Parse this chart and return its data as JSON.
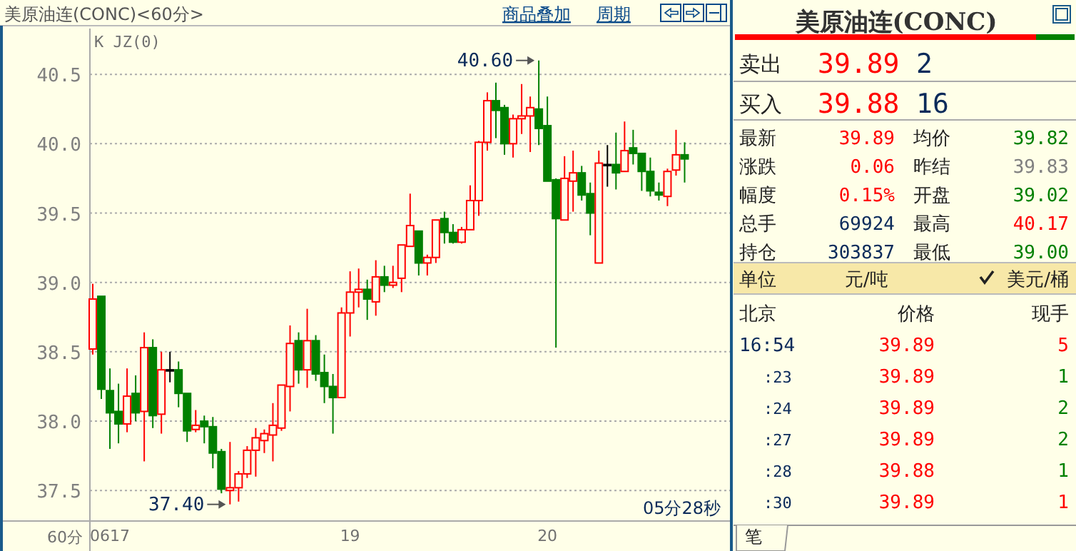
{
  "chart_data": [
    {
      "type": "candlestick",
      "title": "美原油连(CONC)<60分>",
      "categories": [
        null,
        null,
        "0617",
        null,
        null,
        null,
        null,
        null,
        null,
        null,
        null,
        null,
        null,
        null,
        null,
        null,
        null,
        null,
        null,
        null,
        null,
        null,
        null,
        null,
        null,
        null,
        null,
        null,
        null,
        null,
        "19",
        null,
        null,
        null,
        null,
        null,
        null,
        null,
        null,
        null,
        null,
        null,
        null,
        null,
        null,
        null,
        null,
        null,
        null,
        null,
        null,
        null,
        null,
        "20",
        null,
        null,
        null,
        null,
        null,
        null,
        null,
        null,
        null,
        null,
        null,
        null,
        null,
        null,
        null,
        null
      ],
      "ohlc": [
        [
          38.52,
          38.99,
          38.48,
          38.88
        ],
        [
          38.9,
          38.9,
          38.16,
          38.23
        ],
        [
          38.22,
          38.38,
          37.8,
          38.06
        ],
        [
          38.07,
          38.27,
          37.84,
          37.98
        ],
        [
          37.98,
          38.38,
          37.92,
          38.18
        ],
        [
          38.2,
          38.33,
          38.0,
          38.06
        ],
        [
          38.07,
          38.64,
          37.71,
          38.53
        ],
        [
          38.53,
          38.59,
          37.95,
          38.04
        ],
        [
          38.05,
          38.5,
          37.91,
          38.37
        ],
        [
          38.37,
          38.5,
          38.28,
          38.37
        ],
        [
          38.37,
          38.43,
          38.1,
          38.2
        ],
        [
          38.2,
          38.2,
          37.85,
          37.93
        ],
        [
          37.94,
          38.08,
          37.92,
          37.97
        ],
        [
          38.0,
          38.04,
          37.84,
          37.96
        ],
        [
          37.96,
          38.03,
          37.66,
          37.77
        ],
        [
          37.78,
          37.8,
          37.48,
          37.51
        ],
        [
          37.5,
          37.85,
          37.4,
          37.52
        ],
        [
          37.52,
          37.64,
          37.42,
          37.62
        ],
        [
          37.62,
          37.82,
          37.59,
          37.79
        ],
        [
          37.79,
          37.95,
          37.6,
          37.88
        ],
        [
          37.86,
          37.94,
          37.77,
          37.91
        ],
        [
          37.9,
          38.13,
          37.71,
          37.97
        ],
        [
          37.95,
          38.26,
          37.93,
          38.26
        ],
        [
          38.25,
          38.69,
          38.07,
          38.56
        ],
        [
          38.58,
          38.64,
          38.27,
          38.37
        ],
        [
          38.37,
          38.81,
          38.24,
          38.58
        ],
        [
          38.58,
          38.62,
          38.29,
          38.34
        ],
        [
          38.35,
          38.48,
          38.13,
          38.25
        ],
        [
          38.25,
          38.34,
          37.91,
          38.17
        ],
        [
          38.17,
          38.82,
          38.17,
          38.78
        ],
        [
          38.78,
          39.08,
          38.61,
          38.93
        ],
        [
          38.93,
          39.1,
          38.82,
          38.95
        ],
        [
          38.95,
          39.02,
          38.73,
          38.88
        ],
        [
          38.86,
          39.16,
          38.76,
          39.04
        ],
        [
          39.04,
          39.12,
          38.93,
          38.98
        ],
        [
          38.98,
          39.12,
          38.96,
          39.0
        ],
        [
          39.03,
          39.27,
          38.93,
          39.27
        ],
        [
          39.26,
          39.64,
          39.26,
          39.41
        ],
        [
          39.37,
          39.37,
          39.05,
          39.14
        ],
        [
          39.14,
          39.2,
          39.05,
          39.18
        ],
        [
          39.18,
          39.45,
          39.14,
          39.45
        ],
        [
          39.46,
          39.51,
          39.28,
          39.36
        ],
        [
          39.36,
          39.42,
          39.28,
          39.29
        ],
        [
          39.29,
          39.4,
          39.28,
          39.38
        ],
        [
          39.38,
          39.7,
          39.38,
          39.59
        ],
        [
          39.59,
          40.02,
          39.48,
          40.01
        ],
        [
          40.01,
          40.37,
          39.95,
          40.31
        ],
        [
          40.31,
          40.44,
          40.04,
          40.24
        ],
        [
          40.26,
          40.28,
          39.92,
          40.0
        ],
        [
          40.0,
          40.21,
          39.9,
          40.18
        ],
        [
          40.18,
          40.43,
          40.07,
          40.2
        ],
        [
          40.2,
          40.34,
          39.94,
          40.26
        ],
        [
          40.25,
          40.6,
          39.99,
          40.11
        ],
        [
          40.13,
          40.34,
          39.73,
          39.73
        ],
        [
          39.74,
          39.75,
          38.53,
          39.46
        ],
        [
          39.45,
          39.91,
          39.45,
          39.75
        ],
        [
          39.73,
          39.95,
          39.51,
          39.79
        ],
        [
          39.79,
          39.84,
          39.59,
          39.63
        ],
        [
          39.64,
          39.72,
          39.34,
          39.5
        ],
        [
          39.14,
          39.95,
          39.14,
          39.86
        ],
        [
          39.85,
          39.99,
          39.69,
          39.85
        ],
        [
          39.85,
          40.08,
          39.67,
          39.79
        ],
        [
          39.8,
          40.16,
          39.8,
          39.95
        ],
        [
          39.97,
          40.1,
          39.85,
          39.93
        ],
        [
          39.93,
          39.93,
          39.66,
          39.8
        ],
        [
          39.8,
          39.9,
          39.62,
          39.66
        ],
        [
          39.65,
          39.72,
          39.59,
          39.63
        ],
        [
          39.62,
          39.82,
          39.55,
          39.8
        ],
        [
          39.81,
          40.1,
          39.77,
          39.92
        ],
        [
          39.92,
          40.01,
          39.72,
          39.89
        ]
      ],
      "colors": [
        "#ff0000",
        "#008000",
        "#008000",
        "#008000",
        "#ff0000",
        "#008000",
        "#ff0000",
        "#008000",
        "#ff0000",
        "#000000",
        "#008000",
        "#008000",
        "#ff0000",
        "#008000",
        "#008000",
        "#008000",
        "#ff0000",
        "#ff0000",
        "#ff0000",
        "#ff0000",
        "#ff0000",
        "#ff0000",
        "#ff0000",
        "#ff0000",
        "#008000",
        "#ff0000",
        "#008000",
        "#008000",
        "#008000",
        "#ff0000",
        "#ff0000",
        "#ff0000",
        "#008000",
        "#ff0000",
        "#008000",
        "#ff0000",
        "#ff0000",
        "#ff0000",
        "#008000",
        "#ff0000",
        "#ff0000",
        "#008000",
        "#008000",
        "#ff0000",
        "#ff0000",
        "#ff0000",
        "#ff0000",
        "#008000",
        "#008000",
        "#ff0000",
        "#ff0000",
        "#ff0000",
        "#008000",
        "#008000",
        "#008000",
        "#ff0000",
        "#ff0000",
        "#008000",
        "#008000",
        "#ff0000",
        "#000000",
        "#008000",
        "#ff0000",
        "#008000",
        "#008000",
        "#008000",
        "#008000",
        "#ff0000",
        "#ff0000",
        "#008000"
      ],
      "ylim": [
        37.28,
        40.83
      ],
      "yticks": [
        37.5,
        {
          "value": 38,
          "label": "38.0"
        },
        38.5,
        {
          "value": 39,
          "label": "39.0"
        },
        39.5,
        {
          "value": 40,
          "label": "40.0"
        },
        40.5
      ],
      "grid": "y",
      "annotations": [
        "K JZ(0)",
        "40.60",
        "37.40",
        "05分28秒",
        "60分",
        "商品叠加",
        "周期"
      ]
    },
    {
      "type": "other",
      "title": "美原油连(CONC)",
      "annotations": [
        "卖出",
        "39.89",
        "2",
        "买入",
        "39.88",
        "16",
        "最新",
        "39.89",
        "均价",
        "39.82",
        "涨跌",
        "0.06",
        "昨结",
        "39.83",
        "幅度",
        "0.15%",
        "开盘",
        "39.02",
        "总手",
        "69924",
        "最高",
        "40.17",
        "持仓",
        "303837",
        "最低",
        "39.00",
        "单位",
        "元/吨",
        "美元/桶",
        "北京",
        "价格",
        "现手",
        "16:54",
        "39.89",
        "5",
        ":23",
        "39.89",
        "1",
        ":24",
        "39.89",
        "2",
        ":27",
        "39.89",
        "2",
        ":28",
        "39.88",
        "1",
        ":30",
        "39.89",
        "1",
        "笔"
      ]
    }
  ]
}
